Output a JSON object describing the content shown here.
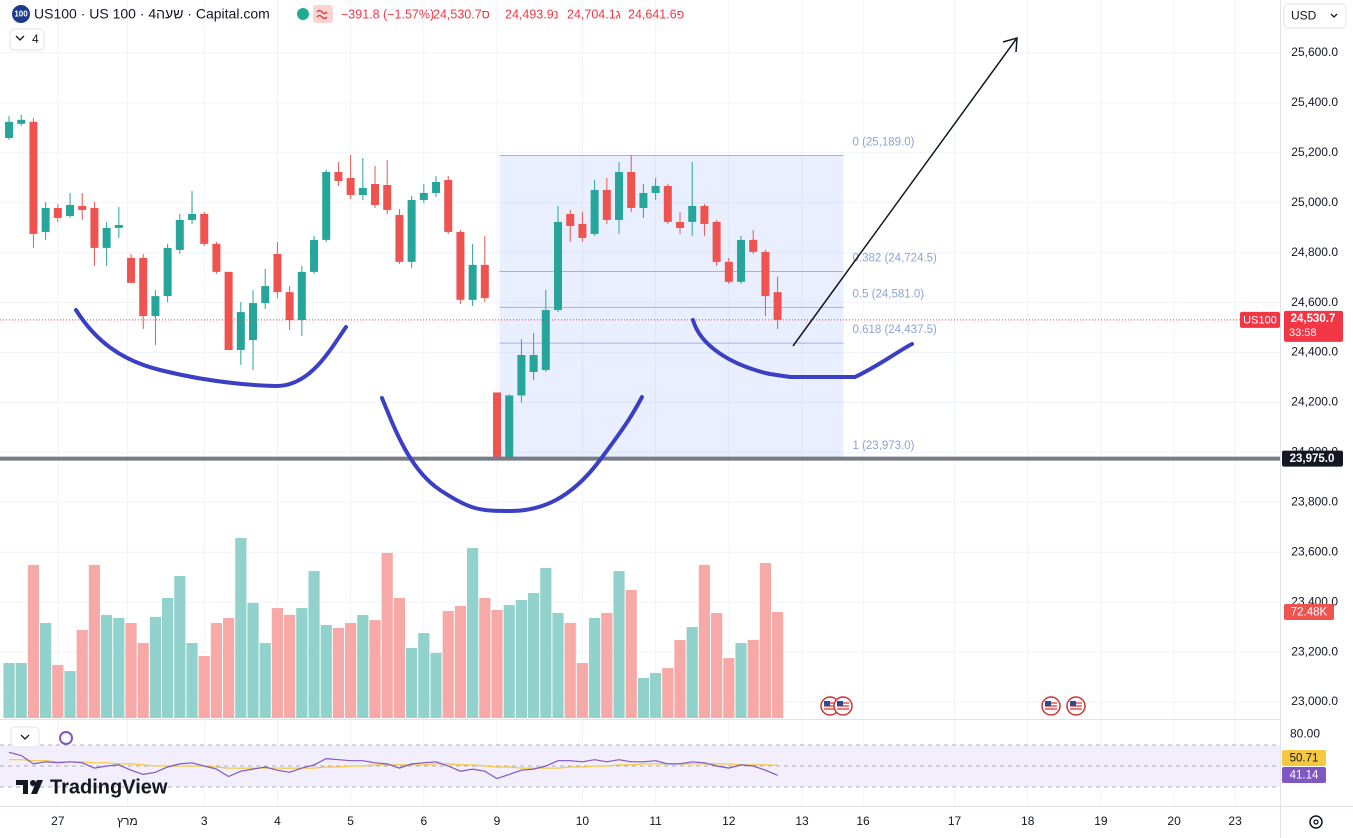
{
  "header": {
    "symbol_icon": "100",
    "title": "US100 · US 100 · 4שעה · Capital.com",
    "change": "−391.8 (−1.57%)",
    "ohlc": [
      "24,530.7ס",
      "24,493.9נ",
      "24,704.1ג",
      "24,641.6פ"
    ],
    "indicator_count": "4",
    "currency": "USD"
  },
  "logo": "TradingView",
  "chart_data": {
    "type": "candlestick",
    "up_color": "#26a69a",
    "down_color": "#ef5350",
    "open": [
      25259,
      25316,
      25324,
      24883,
      24979,
      24947,
      24987,
      24979,
      24819,
      24899,
      24779,
      24779,
      24546,
      24626,
      24811,
      24931,
      24955,
      24835,
      24723,
      24410,
      24450,
      24598,
      24795,
      24642,
      24530,
      24723,
      24851,
      25123,
      25099,
      25031,
      25075,
      25071,
      24951,
      24763,
      25011,
      25039,
      25091,
      24883,
      24611,
      24751,
      24240,
      23973,
      24228,
      24322,
      24330,
      24570,
      24955,
      24915,
      24875,
      25051,
      24931,
      25123,
      24979,
      25039,
      25067,
      24923,
      24923,
      24987,
      24923,
      24763,
      24683,
      24851,
      24803,
      24641.6
    ],
    "high": [
      25348,
      25352,
      25340,
      25003,
      24995,
      25039,
      25039,
      25003,
      24923,
      24983,
      24795,
      24795,
      24650,
      24835,
      24955,
      25047,
      24963,
      24843,
      24723,
      24602,
      24650,
      24735,
      24843,
      24666,
      24747,
      24867,
      25131,
      25163,
      25191,
      25179,
      25147,
      25171,
      24975,
      25027,
      25075,
      25107,
      25107,
      24891,
      24835,
      24867,
      24240,
      24232,
      24454,
      24478,
      24650,
      24987,
      24971,
      24963,
      25091,
      25099,
      25163,
      25191,
      25075,
      25099,
      25075,
      24963,
      25163,
      24995,
      24931,
      24779,
      24867,
      24891,
      24811,
      24704.1
    ],
    "low": [
      25251,
      25308,
      24819,
      24851,
      24923,
      24939,
      24931,
      24747,
      24747,
      24859,
      24679,
      24494,
      24430,
      24602,
      24795,
      24915,
      24827,
      24715,
      24410,
      24350,
      24330,
      24574,
      24618,
      24490,
      24466,
      24715,
      24843,
      25067,
      25015,
      25011,
      24979,
      24955,
      24755,
      24739,
      24999,
      25023,
      24875,
      24594,
      24586,
      24602,
      23973,
      23973,
      24200,
      24290,
      24322,
      24562,
      24843,
      24843,
      24867,
      24915,
      24875,
      24963,
      24939,
      25011,
      24915,
      24875,
      24867,
      24867,
      24747,
      24675,
      24675,
      24795,
      24546,
      24493.9
    ],
    "close": [
      25324,
      25332,
      24875,
      24979,
      24939,
      24991,
      24971,
      24819,
      24899,
      24911,
      24679,
      24546,
      24626,
      24819,
      24931,
      24955,
      24835,
      24723,
      24410,
      24562,
      24598,
      24666,
      24642,
      24530,
      24723,
      24851,
      25123,
      25087,
      25031,
      25059,
      24991,
      24971,
      24763,
      25011,
      25039,
      25083,
      24883,
      24611,
      24751,
      24618,
      23973,
      24228,
      24390,
      24390,
      24570,
      24923,
      24907,
      24859,
      25051,
      24931,
      25123,
      24979,
      25039,
      25067,
      24923,
      24899,
      24987,
      24915,
      24763,
      24683,
      24851,
      24803,
      24626,
      24530.7
    ],
    "xlim": [
      -0.74,
      104.18
    ],
    "ylim": [
      22936,
      25812
    ],
    "grid": true,
    "yticks": [
      {
        "value": 25600,
        "label": "25,600.0"
      },
      {
        "value": 25400,
        "label": "25,400.0"
      },
      {
        "value": 25200,
        "label": "25,200.0"
      },
      {
        "value": 25000,
        "label": "25,000.0"
      },
      {
        "value": 24800,
        "label": "24,800.0"
      },
      {
        "value": 24600,
        "label": "24,600.0"
      },
      {
        "value": 24400,
        "label": "24,400.0"
      },
      {
        "value": 24200,
        "label": "24,200.0"
      },
      {
        "value": 24000,
        "label": "24,000.0"
      },
      {
        "value": 23800,
        "label": "23,800.0"
      },
      {
        "value": 23600,
        "label": "23,600.0"
      },
      {
        "value": 23400,
        "label": "23,400.0"
      },
      {
        "value": 23200,
        "label": "23,200.0"
      },
      {
        "value": 23000,
        "label": "23,000.0"
      }
    ],
    "xticks": [
      {
        "value": 4,
        "label": "27"
      },
      {
        "value": 9.7,
        "label": "מרץ"
      },
      {
        "value": 16,
        "label": "3"
      },
      {
        "value": 22,
        "label": "4"
      },
      {
        "value": 28,
        "label": "5"
      },
      {
        "value": 34,
        "label": "6"
      },
      {
        "value": 40,
        "label": "9"
      },
      {
        "value": 47,
        "label": "10"
      },
      {
        "value": 53,
        "label": "11"
      },
      {
        "value": 59,
        "label": "12"
      },
      {
        "value": 65,
        "label": "13"
      },
      {
        "value": 70,
        "label": "16"
      },
      {
        "value": 77.5,
        "label": "17"
      },
      {
        "value": 83.5,
        "label": "18"
      },
      {
        "value": 89.5,
        "label": "19"
      },
      {
        "value": 95.5,
        "label": "20"
      },
      {
        "value": 100.5,
        "label": "23"
      }
    ],
    "last_price": {
      "value": 24530.7,
      "label": "24,530.7",
      "countdown": "33:58",
      "symbol": "US100",
      "color": "#f23645"
    },
    "hline": {
      "value": 23975,
      "label": "23,975.0",
      "color": "#787b86"
    },
    "fib": {
      "x_range": [
        40.2,
        68.4
      ],
      "color": "#9fb2e6",
      "levels": [
        {
          "level": 0,
          "price": 25189,
          "label": "0 (25,189.0)"
        },
        {
          "level": 0.382,
          "price": 24724.5,
          "label": "0.382 (24,724.5)"
        },
        {
          "level": 0.5,
          "price": 24581,
          "label": "0.5 (24,581.0)"
        },
        {
          "level": 0.618,
          "price": 24437.5,
          "label": "0.618 (24,437.5)"
        },
        {
          "level": 1,
          "price": 23973,
          "label": "1 (23,973.0)"
        }
      ]
    },
    "volume": {
      "up_color": "#92d2cc",
      "down_color": "#f7a9a7",
      "values": [
        37.6,
        37.6,
        104.7,
        65.0,
        36.3,
        32.1,
        60.2,
        104.7,
        70.5,
        68.4,
        65.0,
        51.3,
        69.1,
        82.1,
        97.1,
        51.3,
        42.4,
        65.0,
        68.4,
        123.1,
        78.7,
        51.3,
        75.2,
        70.5,
        75.2,
        100.5,
        63.6,
        61.6,
        65.0,
        70.5,
        67.0,
        112.9,
        82.1,
        47.9,
        58.1,
        44.5,
        73.2,
        76.6,
        116.3,
        82.1,
        73.9,
        77.3,
        80.7,
        85.5,
        102.6,
        71.8,
        65.0,
        37.6,
        68.4,
        71.8,
        100.5,
        87.6,
        27.4,
        30.8,
        34.2,
        53.4,
        62.2,
        104.7,
        71.8,
        41.0,
        51.3,
        53.4,
        106.0,
        72.48
      ],
      "last_label": "72.48K"
    },
    "rsi": {
      "type": "line",
      "ylim": [
        17.6,
        93.8
      ],
      "yticks": [
        {
          "value": 80,
          "label": "80.00"
        }
      ],
      "levels": [
        70,
        50,
        30
      ],
      "series": [
        {
          "color": "#7e57c2",
          "values": [
            63,
            60,
            52,
            54,
            53,
            54,
            53,
            48,
            50,
            51,
            46,
            42,
            44,
            49,
            52,
            53,
            50,
            47,
            40,
            45,
            47,
            49,
            46,
            44,
            48,
            51,
            57,
            56,
            55,
            55,
            53,
            52,
            48,
            52,
            53,
            54,
            50,
            45,
            47,
            45,
            38,
            42,
            46,
            47,
            50,
            55,
            55,
            54,
            56,
            54,
            56,
            54,
            54,
            55,
            52,
            52,
            54,
            53,
            50,
            48,
            51,
            50,
            46,
            41.14
          ]
        },
        {
          "color": "#f5c842",
          "values": [
            56,
            56,
            55,
            55,
            54,
            54,
            54,
            53,
            53,
            52,
            52,
            51,
            50,
            50,
            50,
            50,
            50,
            49,
            48,
            48,
            48,
            48,
            48,
            48,
            48,
            48,
            49,
            49,
            50,
            50,
            51,
            51,
            51,
            51,
            51,
            52,
            52,
            51,
            51,
            50,
            49,
            49,
            48,
            48,
            48,
            48,
            49,
            49,
            50,
            50,
            51,
            51,
            52,
            52,
            52,
            52,
            52,
            52,
            52,
            52,
            51,
            51,
            51,
            50.71
          ]
        }
      ]
    }
  }
}
